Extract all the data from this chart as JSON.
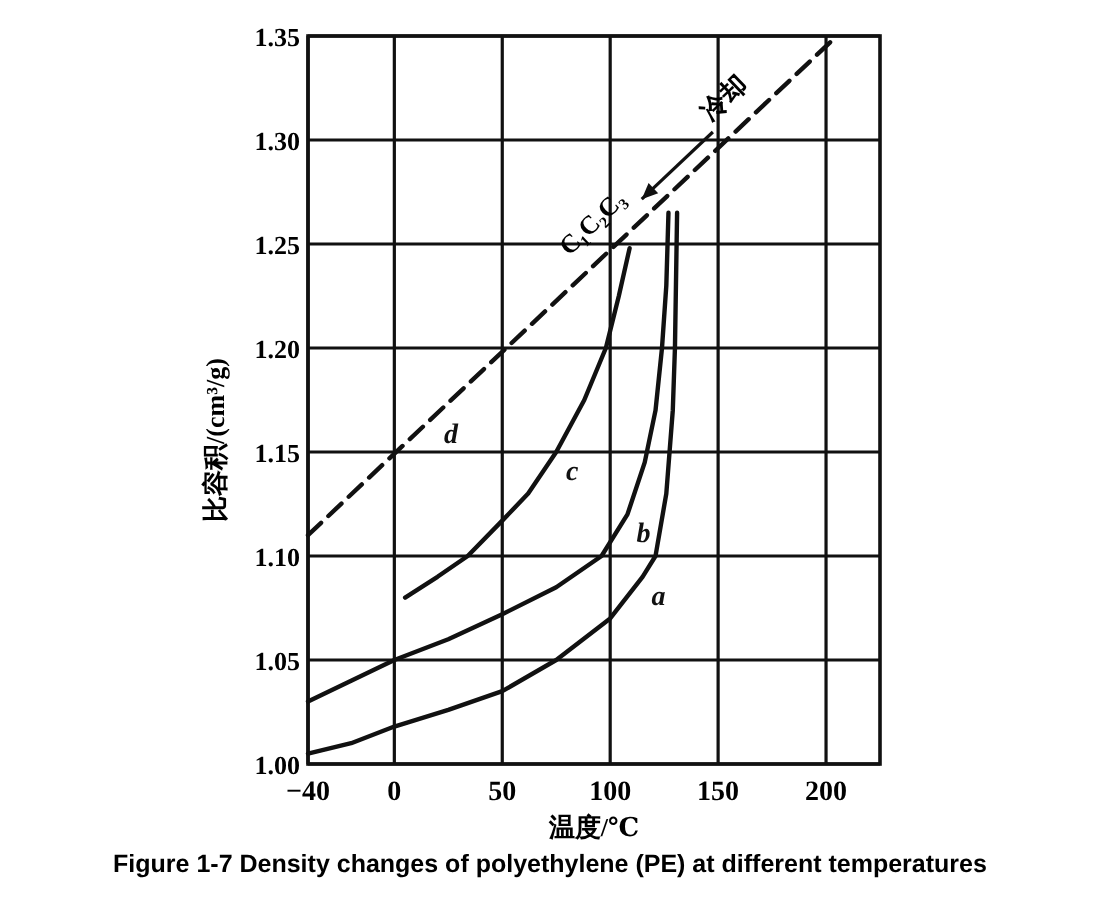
{
  "chart_data": {
    "type": "line",
    "xlabel": "温度/℃",
    "ylabel": "比容积/(cm³/g)",
    "xlim": [
      -40,
      225
    ],
    "xticks": [
      -40,
      0,
      50,
      100,
      150,
      200
    ],
    "ylim": [
      1.0,
      1.35
    ],
    "yticks": [
      {
        "value": 1.0,
        "label": "1.00"
      },
      1.05,
      {
        "value": 1.1,
        "label": "1.10"
      },
      1.15,
      {
        "value": 1.2,
        "label": "1.20"
      },
      1.25,
      {
        "value": 1.3,
        "label": "1.30"
      },
      1.35
    ],
    "grid": true,
    "marker": "none",
    "series": [
      {
        "name": "a",
        "color": "#111111",
        "line_style": "solid",
        "x": [
          -40,
          -20,
          0,
          25,
          50,
          75,
          100,
          115,
          121,
          126,
          129,
          130,
          131
        ],
        "values": [
          1.005,
          1.01,
          1.018,
          1.026,
          1.035,
          1.05,
          1.07,
          1.09,
          1.1,
          1.13,
          1.17,
          1.2,
          1.265
        ]
      },
      {
        "name": "b",
        "color": "#111111",
        "line_style": "solid",
        "x": [
          -40,
          -20,
          0,
          25,
          50,
          75,
          96,
          108,
          116,
          121,
          124,
          126,
          127
        ],
        "values": [
          1.03,
          1.04,
          1.05,
          1.06,
          1.072,
          1.085,
          1.1,
          1.12,
          1.145,
          1.17,
          1.2,
          1.23,
          1.265
        ]
      },
      {
        "name": "c",
        "color": "#111111",
        "line_style": "solid",
        "x": [
          5,
          20,
          34,
          50,
          62,
          75,
          88,
          98,
          104,
          109
        ],
        "values": [
          1.08,
          1.09,
          1.1,
          1.117,
          1.13,
          1.15,
          1.175,
          1.2,
          1.225,
          1.248
        ]
      },
      {
        "name": "d",
        "color": "#111111",
        "line_style": "dashed",
        "x": [
          -40,
          205
        ],
        "values": [
          1.11,
          1.35
        ]
      }
    ],
    "annotations": [
      "C₁C₂C₃",
      "冷却",
      "Figure 1-7 Density changes of polyethylene (PE) at different temperatures"
    ]
  }
}
